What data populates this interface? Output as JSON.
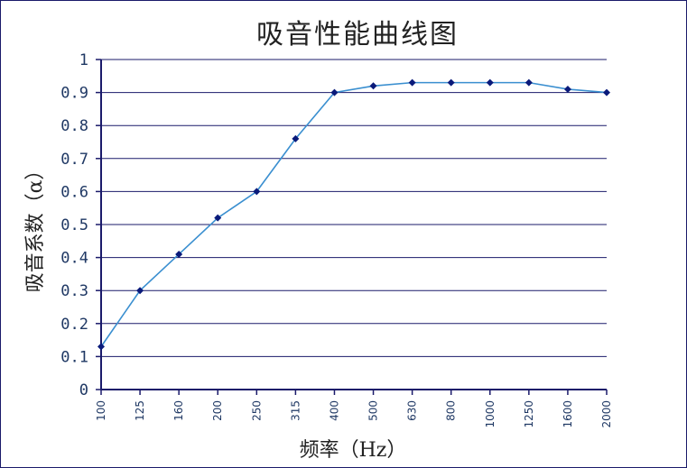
{
  "chart_data": {
    "type": "line",
    "title": "吸音性能曲线图",
    "xlabel": "频率（Hz）",
    "ylabel": "吸音系数（α）",
    "categories": [
      "100",
      "125",
      "160",
      "200",
      "250",
      "315",
      "400",
      "500",
      "630",
      "800",
      "1000",
      "1250",
      "1600",
      "2000"
    ],
    "series": [
      {
        "values": [
          0.13,
          0.3,
          0.41,
          0.52,
          0.6,
          0.76,
          0.9,
          0.92,
          0.93,
          0.93,
          0.93,
          0.93,
          0.91,
          0.9
        ]
      }
    ],
    "ylim": [
      0,
      1
    ],
    "yticks": [
      "0",
      "0.1",
      "0.2",
      "0.3",
      "0.4",
      "0.5",
      "0.6",
      "0.7",
      "0.8",
      "0.9",
      "1"
    ],
    "grid": true,
    "legend": "none",
    "colors": {
      "line": "#3a8fd0",
      "marker": "#0a1a7a",
      "grid": "#1a1a6a",
      "axis": "#1a1a6a"
    }
  }
}
